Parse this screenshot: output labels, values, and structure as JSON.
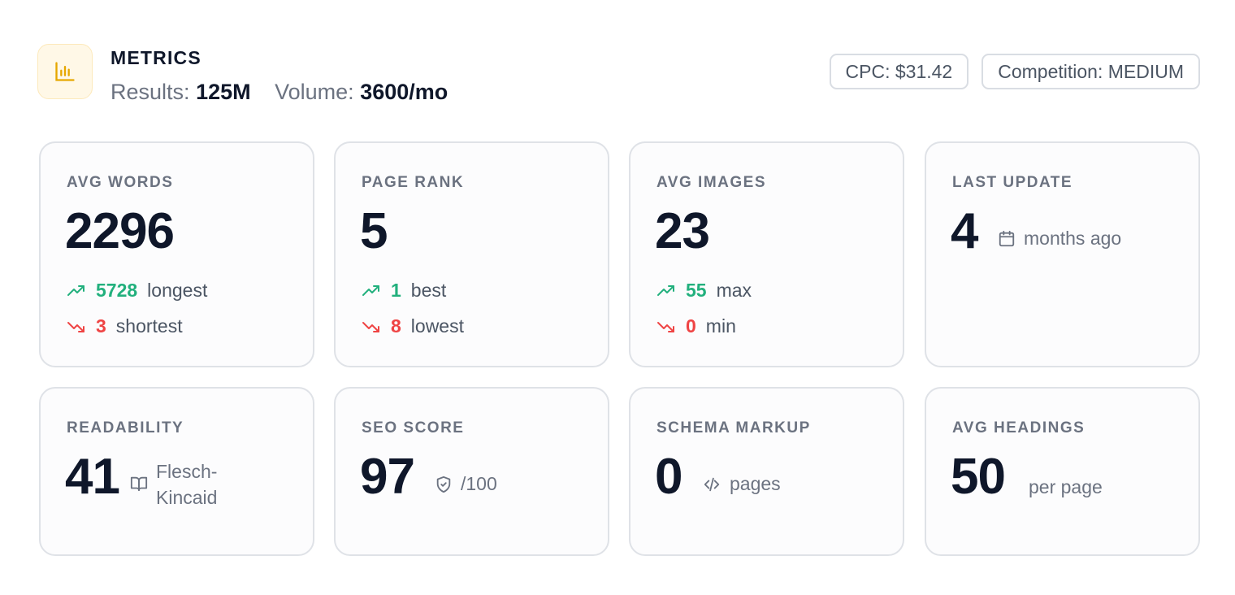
{
  "header": {
    "title": "METRICS",
    "results_label": "Results:",
    "results_value": "125M",
    "volume_label": "Volume:",
    "volume_value": "3600/mo",
    "logo_icon": "bar-chart-icon",
    "accent_color": "#e6a700"
  },
  "badges": {
    "cpc": "CPC: $31.42",
    "competition": "Competition: MEDIUM"
  },
  "colors": {
    "up": "#22b07d",
    "down": "#ef4444"
  },
  "cards": {
    "avg_words": {
      "label": "AVG WORDS",
      "value": "2296",
      "up_value": "5728",
      "up_label": "longest",
      "down_value": "3",
      "down_label": "shortest"
    },
    "page_rank": {
      "label": "PAGE RANK",
      "value": "5",
      "up_value": "1",
      "up_label": "best",
      "down_value": "8",
      "down_label": "lowest"
    },
    "avg_images": {
      "label": "AVG IMAGES",
      "value": "23",
      "up_value": "55",
      "up_label": "max",
      "down_value": "0",
      "down_label": "min"
    },
    "last_update": {
      "label": "LAST UPDATE",
      "value": "4",
      "suffix": "months ago",
      "icon": "calendar-icon"
    },
    "readability": {
      "label": "READABILITY",
      "value": "41",
      "suffix_line1": "Flesch-",
      "suffix_line2": "Kincaid",
      "icon": "book-icon"
    },
    "seo_score": {
      "label": "SEO SCORE",
      "value": "97",
      "suffix": "/100",
      "icon": "shield-icon"
    },
    "schema_markup": {
      "label": "SCHEMA MARKUP",
      "value": "0",
      "suffix": "pages",
      "icon": "code-icon"
    },
    "avg_headings": {
      "label": "AVG HEADINGS",
      "value": "50",
      "suffix": "per page"
    }
  }
}
